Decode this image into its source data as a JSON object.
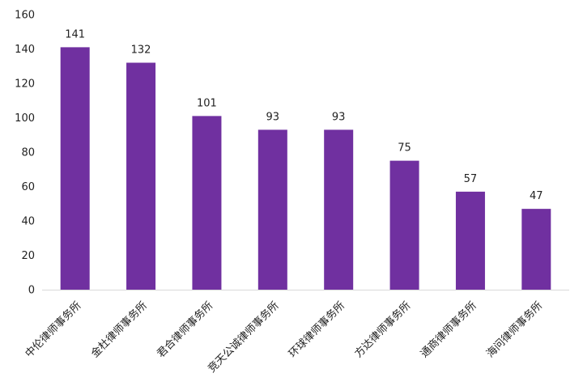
{
  "chart_data": {
    "type": "bar",
    "title": "",
    "xlabel": "",
    "ylabel": "",
    "categories": [
      "中伦律师事务所",
      "金杜律师事务所",
      "君合律师事务所",
      "竞天公诚律师事务所",
      "环球律师事务所",
      "方达律师事务所",
      "通商律师事务所",
      "海问律师事务所"
    ],
    "values": [
      141,
      132,
      101,
      93,
      93,
      75,
      57,
      47
    ],
    "ylim": [
      0,
      160
    ],
    "yticks": [
      0,
      20,
      40,
      60,
      80,
      100,
      120,
      140,
      160
    ],
    "grid": false,
    "legend": "none",
    "bar_color": "#7030a0"
  }
}
